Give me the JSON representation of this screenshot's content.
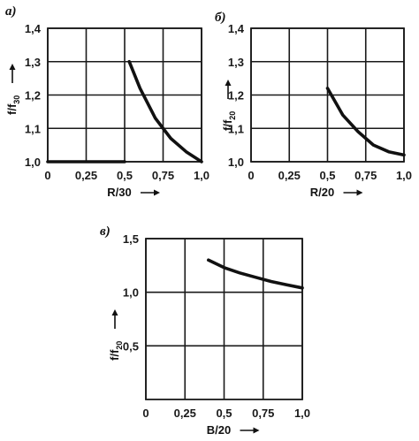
{
  "chart_data": [
    {
      "type": "line",
      "panel_label": "а)",
      "xlabel": "R/30",
      "ylabel_main": "f/f",
      "ylabel_sub": "30",
      "xlim": [
        0,
        1.0
      ],
      "ylim": [
        1.0,
        1.4
      ],
      "x_ticks": [
        0,
        0.25,
        0.5,
        0.75,
        1.0
      ],
      "x_tick_labels": [
        "0",
        "0,25",
        "0,5",
        "0,75",
        "1,0"
      ],
      "y_ticks": [
        1.0,
        1.1,
        1.2,
        1.3,
        1.4
      ],
      "y_tick_labels": [
        "1,0",
        "1,1",
        "1,2",
        "1,3",
        "1,4"
      ],
      "grid": true,
      "series": [
        {
          "x": [
            0.0,
            0.25,
            0.5
          ],
          "y": [
            1.0,
            1.0,
            1.0
          ]
        },
        {
          "x": [
            0.53,
            0.6,
            0.7,
            0.8,
            0.9,
            1.0
          ],
          "y": [
            1.3,
            1.22,
            1.13,
            1.07,
            1.03,
            1.0
          ]
        }
      ]
    },
    {
      "type": "line",
      "panel_label": "б)",
      "xlabel": "R/20",
      "ylabel_main": "f/f",
      "ylabel_sub": "20",
      "xlim": [
        0,
        1.0
      ],
      "ylim": [
        1.0,
        1.4
      ],
      "x_ticks": [
        0,
        0.25,
        0.5,
        0.75,
        1.0
      ],
      "x_tick_labels": [
        "0",
        "0,25",
        "0,5",
        "0,75",
        "1,0"
      ],
      "y_ticks": [
        1.0,
        1.1,
        1.2,
        1.3,
        1.4
      ],
      "y_tick_labels": [
        "1,0",
        "1,1",
        "1,2",
        "1,3",
        "1,4"
      ],
      "grid": true,
      "series": [
        {
          "x": [
            0.5,
            0.6,
            0.7,
            0.8,
            0.9,
            1.0
          ],
          "y": [
            1.22,
            1.14,
            1.09,
            1.05,
            1.03,
            1.02
          ]
        }
      ]
    },
    {
      "type": "line",
      "panel_label": "в)",
      "xlabel": "B/20",
      "ylabel_main": "f/f",
      "ylabel_sub": "20",
      "xlim": [
        0,
        1.0
      ],
      "ylim": [
        0,
        1.5
      ],
      "x_ticks": [
        0,
        0.25,
        0.5,
        0.75,
        1.0
      ],
      "x_tick_labels": [
        "0",
        "0,25",
        "0,5",
        "0,75",
        "1,0"
      ],
      "y_ticks": [
        0.5,
        1.0,
        1.5
      ],
      "y_tick_labels": [
        "0,5",
        "1,0",
        "1,5"
      ],
      "grid": true,
      "series": [
        {
          "x": [
            0.4,
            0.5,
            0.6,
            0.7,
            0.8,
            0.9,
            1.0
          ],
          "y": [
            1.3,
            1.23,
            1.18,
            1.14,
            1.1,
            1.07,
            1.04
          ]
        }
      ]
    }
  ]
}
